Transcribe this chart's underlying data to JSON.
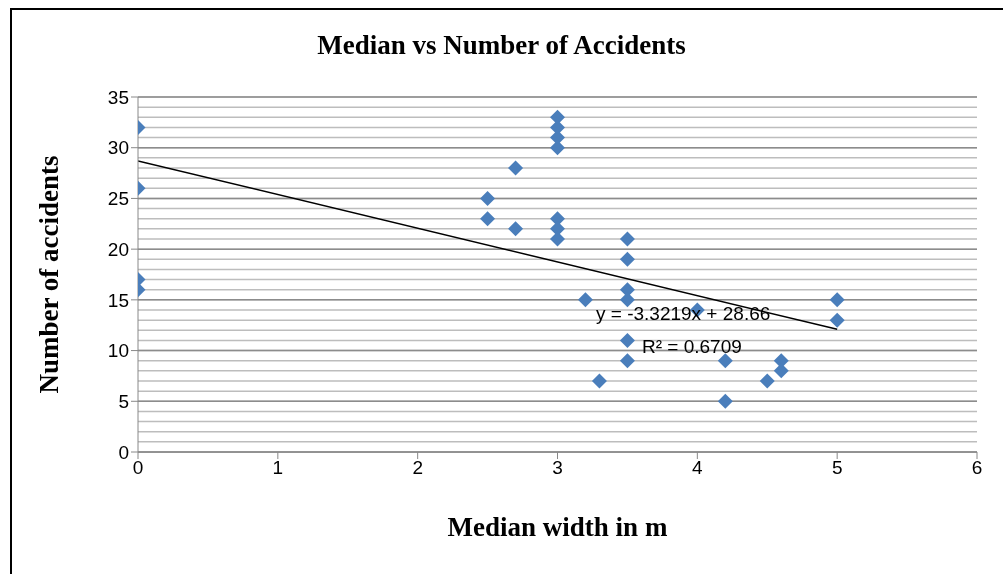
{
  "chart_data": {
    "type": "scatter",
    "title": "Median vs Number of Accidents",
    "xlabel": "Median width in m",
    "ylabel": "Number of accidents",
    "series": [
      {
        "type": "scatter",
        "marker": "diamond",
        "color": "#4a7ebb",
        "x": [
          0,
          0,
          0,
          0,
          2.5,
          2.5,
          2.7,
          2.7,
          3,
          3,
          3,
          3,
          3,
          3,
          3,
          3.2,
          3.3,
          3.5,
          3.5,
          3.5,
          3.5,
          3.5,
          3.5,
          4,
          4.2,
          4.2,
          4.5,
          4.6,
          4.6,
          5,
          5
        ],
        "values": [
          32,
          26,
          17,
          16,
          25,
          23,
          28,
          22,
          33,
          32,
          31,
          30,
          23,
          22,
          21,
          15,
          7,
          21,
          19,
          16,
          15,
          11,
          9,
          14,
          9,
          5,
          7,
          9,
          8,
          15,
          13
        ]
      },
      {
        "type": "line",
        "marker": "none",
        "color": "#000000",
        "x": [
          0,
          5
        ],
        "values": [
          28.7,
          12.1
        ]
      }
    ],
    "annotations": [
      "y = -3.3219x + 28.66",
      "R² = 0.6709"
    ],
    "xlim": [
      0,
      6
    ],
    "xticks": [
      0,
      1,
      2,
      3,
      4,
      5,
      6
    ],
    "ylim": [
      0,
      35
    ],
    "yticks": [
      0,
      5,
      10,
      15,
      20,
      25,
      30,
      35
    ],
    "grid": "y"
  }
}
